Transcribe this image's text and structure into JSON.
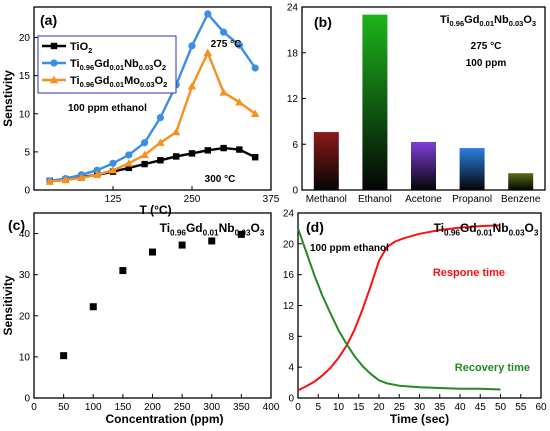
{
  "chart_data": [
    {
      "id": "a",
      "type": "line",
      "panel_label": "(a)",
      "xlabel": "T (°C)",
      "ylabel": "Senstivity",
      "xlim": [
        0,
        375
      ],
      "ylim": [
        0,
        24
      ],
      "xticks": [
        "125",
        "250",
        "375"
      ],
      "xtick_values": [
        125,
        250,
        375
      ],
      "yticks": [
        "0",
        "5",
        "10",
        "15",
        "20"
      ],
      "ytick_values": [
        0,
        5,
        10,
        15,
        20
      ],
      "legend_position": "top-left",
      "series": [
        {
          "name": "TiO",
          "name_sub": "2",
          "color": "#000000",
          "marker": "square",
          "x": [
            25,
            50,
            75,
            100,
            125,
            150,
            175,
            200,
            225,
            250,
            275,
            300,
            325,
            350
          ],
          "y": [
            1.2,
            1.4,
            1.7,
            2.0,
            2.4,
            2.9,
            3.4,
            3.9,
            4.4,
            4.8,
            5.2,
            5.5,
            5.3,
            4.3
          ]
        },
        {
          "name": "Ti",
          "name_sub": "0.96",
          "name_parts": [
            "Gd",
            "0.01",
            "Nb",
            "0.03",
            "O",
            "2"
          ],
          "color": "#3a8ee6",
          "marker": "circle",
          "x": [
            25,
            50,
            75,
            100,
            125,
            150,
            175,
            200,
            225,
            250,
            275,
            300,
            325,
            350
          ],
          "y": [
            1.2,
            1.5,
            2.0,
            2.6,
            3.5,
            4.6,
            6.2,
            9.5,
            13.8,
            18.9,
            23.1,
            20.7,
            19.0,
            16.0
          ]
        },
        {
          "name": "Ti",
          "name_sub": "0.96",
          "name_parts": [
            "Gd",
            "0.01",
            "Mo",
            "0.03",
            "O",
            "2"
          ],
          "color": "#f7901e",
          "marker": "triangle",
          "x": [
            25,
            50,
            75,
            100,
            125,
            150,
            175,
            200,
            225,
            250,
            275,
            300,
            325,
            350
          ],
          "y": [
            1.1,
            1.3,
            1.6,
            2.0,
            2.6,
            3.5,
            4.6,
            6.2,
            7.6,
            13.6,
            18.0,
            12.8,
            11.5,
            10.0
          ]
        }
      ],
      "annotations": [
        "275 °C",
        "100 ppm ethanol",
        "300 °C"
      ]
    },
    {
      "id": "b",
      "type": "bar",
      "panel_label": "(b)",
      "title_parts": [
        "Ti",
        "0.96",
        "Gd",
        "0.01",
        "Nb",
        "0.03",
        "O",
        "3"
      ],
      "annotations": [
        "275 °C",
        "100 ppm"
      ],
      "categories": [
        "Methanol",
        "Ethanol",
        "Acetone",
        "Propanol",
        "Benzene"
      ],
      "values": [
        7.6,
        23.0,
        6.3,
        5.5,
        2.2
      ],
      "colors": [
        "#8b1a1a",
        "#1cb51c",
        "#7d3fd6",
        "#2a7fe0",
        "#5a6e14"
      ],
      "ylim": [
        0,
        24
      ],
      "yticks": [
        "0",
        "6",
        "12",
        "18",
        "24"
      ],
      "ytick_values": [
        0,
        6,
        12,
        18,
        24
      ]
    },
    {
      "id": "c",
      "type": "scatter",
      "panel_label": "(c)",
      "title_parts": [
        "Ti",
        "0.96",
        "Gd",
        "0.01",
        "Nb",
        "0.03",
        "O",
        "3"
      ],
      "xlabel": "Concentration (ppm)",
      "ylabel": "Sensitivity",
      "xlim": [
        0,
        400
      ],
      "ylim": [
        0,
        45
      ],
      "xticks": [
        "0",
        "50",
        "100",
        "150",
        "200",
        "250",
        "300",
        "350",
        "400"
      ],
      "xtick_values": [
        0,
        50,
        100,
        150,
        200,
        250,
        300,
        350,
        400
      ],
      "yticks": [
        "0",
        "10",
        "20",
        "30",
        "40"
      ],
      "ytick_values": [
        0,
        10,
        20,
        30,
        40
      ],
      "x": [
        50,
        100,
        150,
        200,
        250,
        300,
        350
      ],
      "y": [
        10.3,
        22.2,
        31.0,
        35.5,
        37.2,
        38.2,
        39.8
      ],
      "color": "#000000"
    },
    {
      "id": "d",
      "type": "line",
      "panel_label": "(d)",
      "title_parts": [
        "Ti",
        "0.96",
        "Gd",
        "0.01",
        "Nb",
        "0.03",
        "O",
        "3"
      ],
      "xlabel": "Time (sec)",
      "xlim": [
        0,
        60
      ],
      "ylim": [
        0,
        24
      ],
      "xticks": [
        "0",
        "5",
        "10",
        "15",
        "20",
        "25",
        "30",
        "35",
        "40",
        "45",
        "50",
        "55",
        "60"
      ],
      "xtick_values": [
        0,
        5,
        10,
        15,
        20,
        25,
        30,
        35,
        40,
        45,
        50,
        55,
        60
      ],
      "yticks": [
        "0",
        "4",
        "8",
        "12",
        "16",
        "20",
        "24"
      ],
      "ytick_values": [
        0,
        4,
        8,
        12,
        16,
        20,
        24
      ],
      "annotations": [
        "100 ppm ethanol",
        "Respone time",
        "Recovery time"
      ],
      "series": [
        {
          "name": "Respone time",
          "color": "#ff1010",
          "x": [
            0,
            2,
            4,
            6,
            8,
            10,
            12,
            14,
            16,
            18,
            20,
            22,
            24,
            26,
            28,
            30,
            35,
            40,
            45,
            50
          ],
          "y": [
            1.0,
            1.5,
            2.1,
            2.9,
            3.9,
            5.2,
            6.8,
            8.9,
            11.6,
            14.6,
            17.8,
            19.6,
            20.3,
            20.7,
            21.0,
            21.3,
            21.8,
            22.1,
            22.3,
            22.4
          ]
        },
        {
          "name": "Recovery time",
          "color": "#228b22",
          "x": [
            0,
            2,
            4,
            6,
            8,
            10,
            12,
            14,
            16,
            18,
            20,
            22,
            25,
            30,
            35,
            40,
            45,
            50
          ],
          "y": [
            22.0,
            19.0,
            16.0,
            13.3,
            11.0,
            8.8,
            7.0,
            5.4,
            4.1,
            3.1,
            2.3,
            1.9,
            1.6,
            1.4,
            1.3,
            1.2,
            1.2,
            1.1
          ]
        }
      ]
    }
  ]
}
